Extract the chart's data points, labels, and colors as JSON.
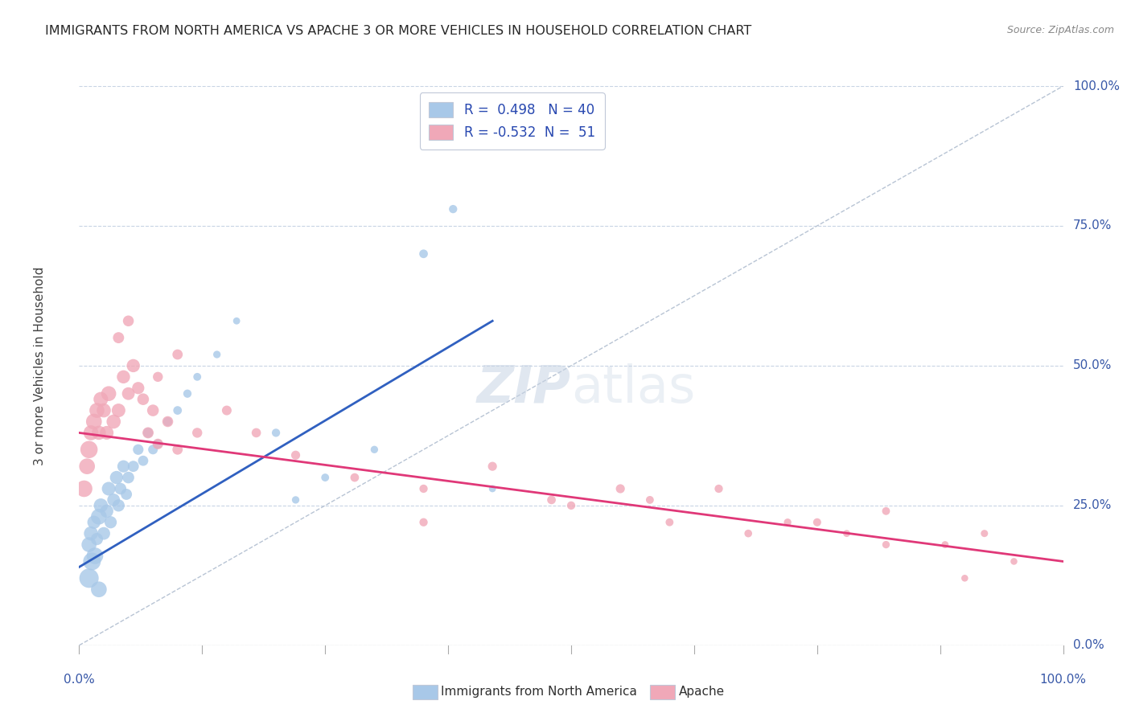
{
  "title": "IMMIGRANTS FROM NORTH AMERICA VS APACHE 3 OR MORE VEHICLES IN HOUSEHOLD CORRELATION CHART",
  "source": "Source: ZipAtlas.com",
  "ylabel": "3 or more Vehicles in Household",
  "xlim": [
    0,
    100
  ],
  "ylim": [
    0,
    100
  ],
  "ytick_values": [
    0,
    25,
    50,
    75,
    100
  ],
  "blue_R": 0.498,
  "blue_N": 40,
  "pink_R": -0.532,
  "pink_N": 51,
  "blue_color": "#a8c8e8",
  "pink_color": "#f0a8b8",
  "blue_line_color": "#3060c0",
  "pink_line_color": "#e03878",
  "diag_line_color": "#b8c4d4",
  "legend_label_blue": "Immigrants from North America",
  "legend_label_pink": "Apache",
  "watermark_zip": "ZIP",
  "watermark_atlas": "atlas",
  "background_color": "#ffffff",
  "grid_color": "#c8d4e4",
  "title_color": "#282828",
  "axis_label_color": "#3858a8",
  "source_color": "#888888",
  "blue_scatter_x": [
    1.0,
    1.2,
    1.5,
    1.8,
    2.0,
    2.2,
    2.5,
    2.8,
    3.0,
    3.2,
    3.5,
    3.8,
    4.0,
    4.2,
    4.5,
    4.8,
    5.0,
    5.5,
    6.0,
    6.5,
    7.0,
    7.5,
    8.0,
    9.0,
    10.0,
    11.0,
    12.0,
    14.0,
    16.0,
    20.0,
    22.0,
    1.0,
    1.3,
    1.6,
    2.0,
    25.0,
    30.0,
    35.0,
    38.0,
    42.0
  ],
  "blue_scatter_y": [
    18,
    20,
    22,
    19,
    23,
    25,
    20,
    24,
    28,
    22,
    26,
    30,
    25,
    28,
    32,
    27,
    30,
    32,
    35,
    33,
    38,
    35,
    36,
    40,
    42,
    45,
    48,
    52,
    58,
    38,
    26,
    12,
    15,
    16,
    10,
    30,
    35,
    70,
    78,
    28
  ],
  "blue_scatter_sizes": [
    180,
    160,
    140,
    120,
    200,
    160,
    130,
    140,
    150,
    120,
    130,
    140,
    120,
    110,
    120,
    100,
    110,
    100,
    90,
    85,
    80,
    75,
    70,
    65,
    60,
    55,
    50,
    45,
    40,
    55,
    45,
    300,
    250,
    220,
    200,
    50,
    45,
    60,
    55,
    40
  ],
  "pink_scatter_x": [
    0.5,
    0.8,
    1.0,
    1.2,
    1.5,
    1.8,
    2.0,
    2.2,
    2.5,
    2.8,
    3.0,
    3.5,
    4.0,
    4.5,
    5.0,
    5.5,
    6.0,
    6.5,
    7.0,
    7.5,
    8.0,
    9.0,
    10.0,
    12.0,
    15.0,
    18.0,
    22.0,
    28.0,
    35.0,
    42.0,
    50.0,
    58.0,
    65.0,
    72.0,
    78.0,
    82.0,
    88.0,
    92.0,
    95.0,
    4.0,
    5.0,
    8.0,
    10.0,
    35.0,
    48.0,
    55.0,
    60.0,
    68.0,
    75.0,
    82.0,
    90.0
  ],
  "pink_scatter_y": [
    28,
    32,
    35,
    38,
    40,
    42,
    38,
    44,
    42,
    38,
    45,
    40,
    42,
    48,
    45,
    50,
    46,
    44,
    38,
    42,
    36,
    40,
    35,
    38,
    42,
    38,
    34,
    30,
    28,
    32,
    25,
    26,
    28,
    22,
    20,
    24,
    18,
    20,
    15,
    55,
    58,
    48,
    52,
    22,
    26,
    28,
    22,
    20,
    22,
    18,
    12
  ],
  "pink_scatter_sizes": [
    220,
    200,
    240,
    180,
    200,
    180,
    160,
    170,
    160,
    150,
    180,
    160,
    150,
    140,
    130,
    140,
    120,
    110,
    100,
    110,
    90,
    95,
    85,
    80,
    75,
    70,
    65,
    60,
    55,
    65,
    55,
    50,
    55,
    45,
    40,
    50,
    40,
    42,
    38,
    100,
    95,
    80,
    85,
    55,
    60,
    65,
    50,
    48,
    52,
    45,
    38
  ],
  "blue_line_x": [
    0,
    42
  ],
  "blue_line_y": [
    14,
    58
  ],
  "pink_line_x": [
    0,
    100
  ],
  "pink_line_y": [
    38,
    15
  ]
}
